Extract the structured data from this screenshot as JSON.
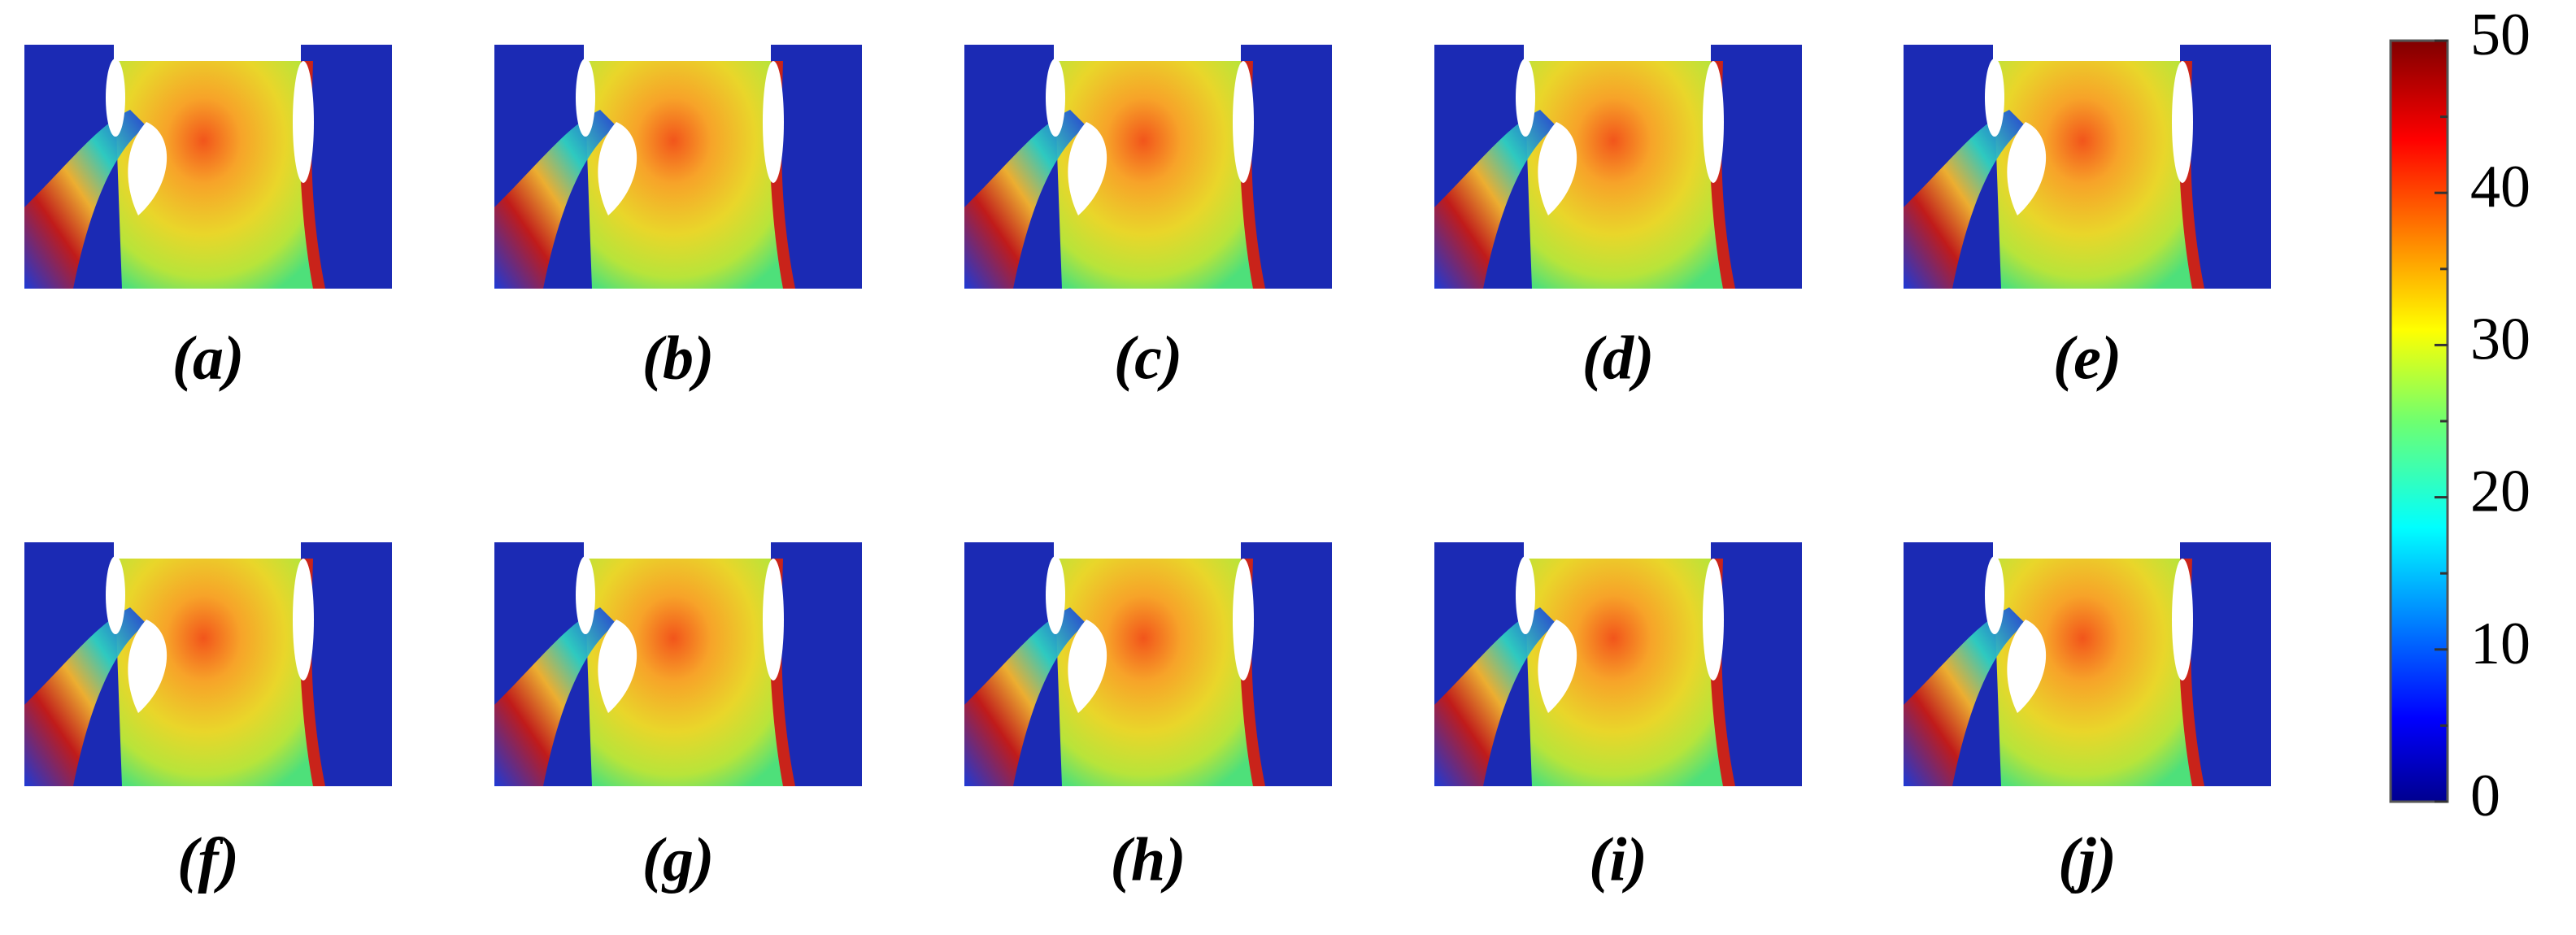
{
  "panels": [
    {
      "label": "(a)"
    },
    {
      "label": "(b)"
    },
    {
      "label": "(c)"
    },
    {
      "label": "(d)"
    },
    {
      "label": "(e)"
    },
    {
      "label": "(f)"
    },
    {
      "label": "(g)"
    },
    {
      "label": "(h)"
    },
    {
      "label": "(i)"
    },
    {
      "label": "(j)"
    }
  ],
  "colorbar": {
    "lim": [
      0,
      50
    ],
    "ticks": [
      0,
      10,
      20,
      30,
      40,
      50
    ],
    "minor_ticks": [
      5,
      15,
      25,
      35,
      45
    ]
  }
}
